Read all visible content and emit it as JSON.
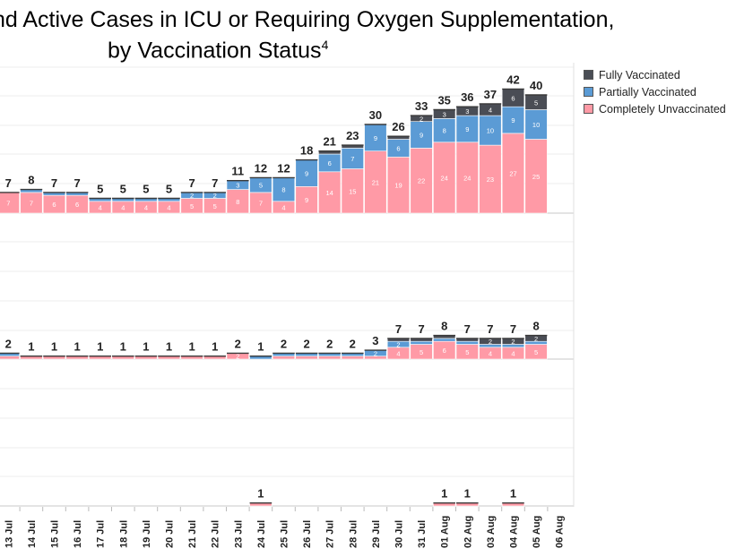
{
  "title_line1": "nd Active Cases in ICU or Requiring Oxygen Supplementation,",
  "title_line2": "by Vaccination Status",
  "title_sup": "4",
  "legend": [
    {
      "label": "Fully Vaccinated",
      "color": "#4a4d55"
    },
    {
      "label": "Partially Vaccinated",
      "color": "#5b9bd5"
    },
    {
      "label": "Completely Unvaccinated",
      "color": "#ff9aa6"
    }
  ],
  "chart_data": {
    "type": "bar",
    "stacked": true,
    "categories": [
      "13 Jul",
      "14 Jul",
      "15 Jul",
      "16 Jul",
      "17 Jul",
      "18 Jul",
      "19 Jul",
      "20 Jul",
      "21 Jul",
      "22 Jul",
      "23 Jul",
      "24 Jul",
      "25 Jul",
      "26 Jul",
      "27 Jul",
      "28 Jul",
      "29 Jul",
      "30 Jul",
      "31 Jul",
      "01 Aug",
      "02 Aug",
      "03 Aug",
      "04 Aug",
      "05 Aug",
      "06 Aug"
    ],
    "panels": [
      {
        "totals": [
          7,
          8,
          7,
          7,
          5,
          5,
          5,
          5,
          7,
          7,
          11,
          12,
          12,
          18,
          21,
          23,
          30,
          26,
          33,
          35,
          36,
          37,
          42,
          40,
          null
        ],
        "series": [
          {
            "name": "Completely Unvaccinated",
            "values": [
              7,
              7,
              6,
              6,
              4,
              4,
              4,
              4,
              5,
              5,
              8,
              7,
              4,
              9,
              14,
              15,
              21,
              19,
              22,
              24,
              24,
              23,
              27,
              25,
              null
            ]
          },
          {
            "name": "Partially Vaccinated",
            "values": [
              0,
              1,
              1,
              1,
              1,
              1,
              1,
              1,
              2,
              2,
              3,
              5,
              8,
              9,
              6,
              7,
              9,
              6,
              9,
              8,
              9,
              10,
              9,
              10,
              null
            ]
          },
          {
            "name": "Fully Vaccinated",
            "values": [
              0,
              0,
              0,
              0,
              0,
              0,
              0,
              0,
              0,
              0,
              0,
              0,
              0,
              0,
              1,
              1,
              0,
              1,
              2,
              3,
              3,
              4,
              6,
              5,
              null
            ]
          }
        ]
      },
      {
        "totals": [
          2,
          1,
          1,
          1,
          1,
          1,
          1,
          1,
          1,
          1,
          2,
          1,
          2,
          2,
          2,
          2,
          3,
          7,
          7,
          8,
          7,
          7,
          7,
          8,
          null
        ],
        "series": [
          {
            "name": "Completely Unvaccinated",
            "values": [
              1,
              1,
              1,
              1,
              1,
              1,
              1,
              1,
              1,
              1,
              2,
              0,
              1,
              1,
              1,
              1,
              1,
              4,
              5,
              6,
              5,
              4,
              4,
              5,
              null
            ]
          },
          {
            "name": "Partially Vaccinated",
            "values": [
              1,
              0,
              0,
              0,
              0,
              0,
              0,
              0,
              0,
              0,
              0,
              1,
              1,
              1,
              1,
              1,
              2,
              2,
              1,
              1,
              1,
              1,
              1,
              1,
              null
            ]
          },
          {
            "name": "Fully Vaccinated",
            "values": [
              0,
              0,
              0,
              0,
              0,
              0,
              0,
              0,
              0,
              0,
              0,
              0,
              0,
              0,
              0,
              0,
              0,
              1,
              1,
              1,
              1,
              2,
              2,
              2,
              null
            ]
          }
        ]
      },
      {
        "totals": [
          null,
          null,
          null,
          null,
          null,
          null,
          null,
          null,
          null,
          null,
          null,
          1,
          null,
          null,
          null,
          null,
          null,
          null,
          null,
          1,
          1,
          null,
          1,
          null,
          null
        ],
        "series": [
          {
            "name": "Completely Unvaccinated",
            "values": [
              0,
              0,
              0,
              0,
              0,
              0,
              0,
              0,
              0,
              0,
              0,
              1,
              0,
              0,
              0,
              0,
              0,
              0,
              0,
              1,
              1,
              0,
              1,
              0,
              0
            ]
          },
          {
            "name": "Partially Vaccinated",
            "values": [
              0,
              0,
              0,
              0,
              0,
              0,
              0,
              0,
              0,
              0,
              0,
              0,
              0,
              0,
              0,
              0,
              0,
              0,
              0,
              0,
              0,
              0,
              0,
              0,
              0
            ]
          },
          {
            "name": "Fully Vaccinated",
            "values": [
              0,
              0,
              0,
              0,
              0,
              0,
              0,
              0,
              0,
              0,
              0,
              0,
              0,
              0,
              0,
              0,
              0,
              0,
              0,
              0,
              0,
              0,
              0,
              0,
              0
            ]
          }
        ]
      }
    ]
  }
}
